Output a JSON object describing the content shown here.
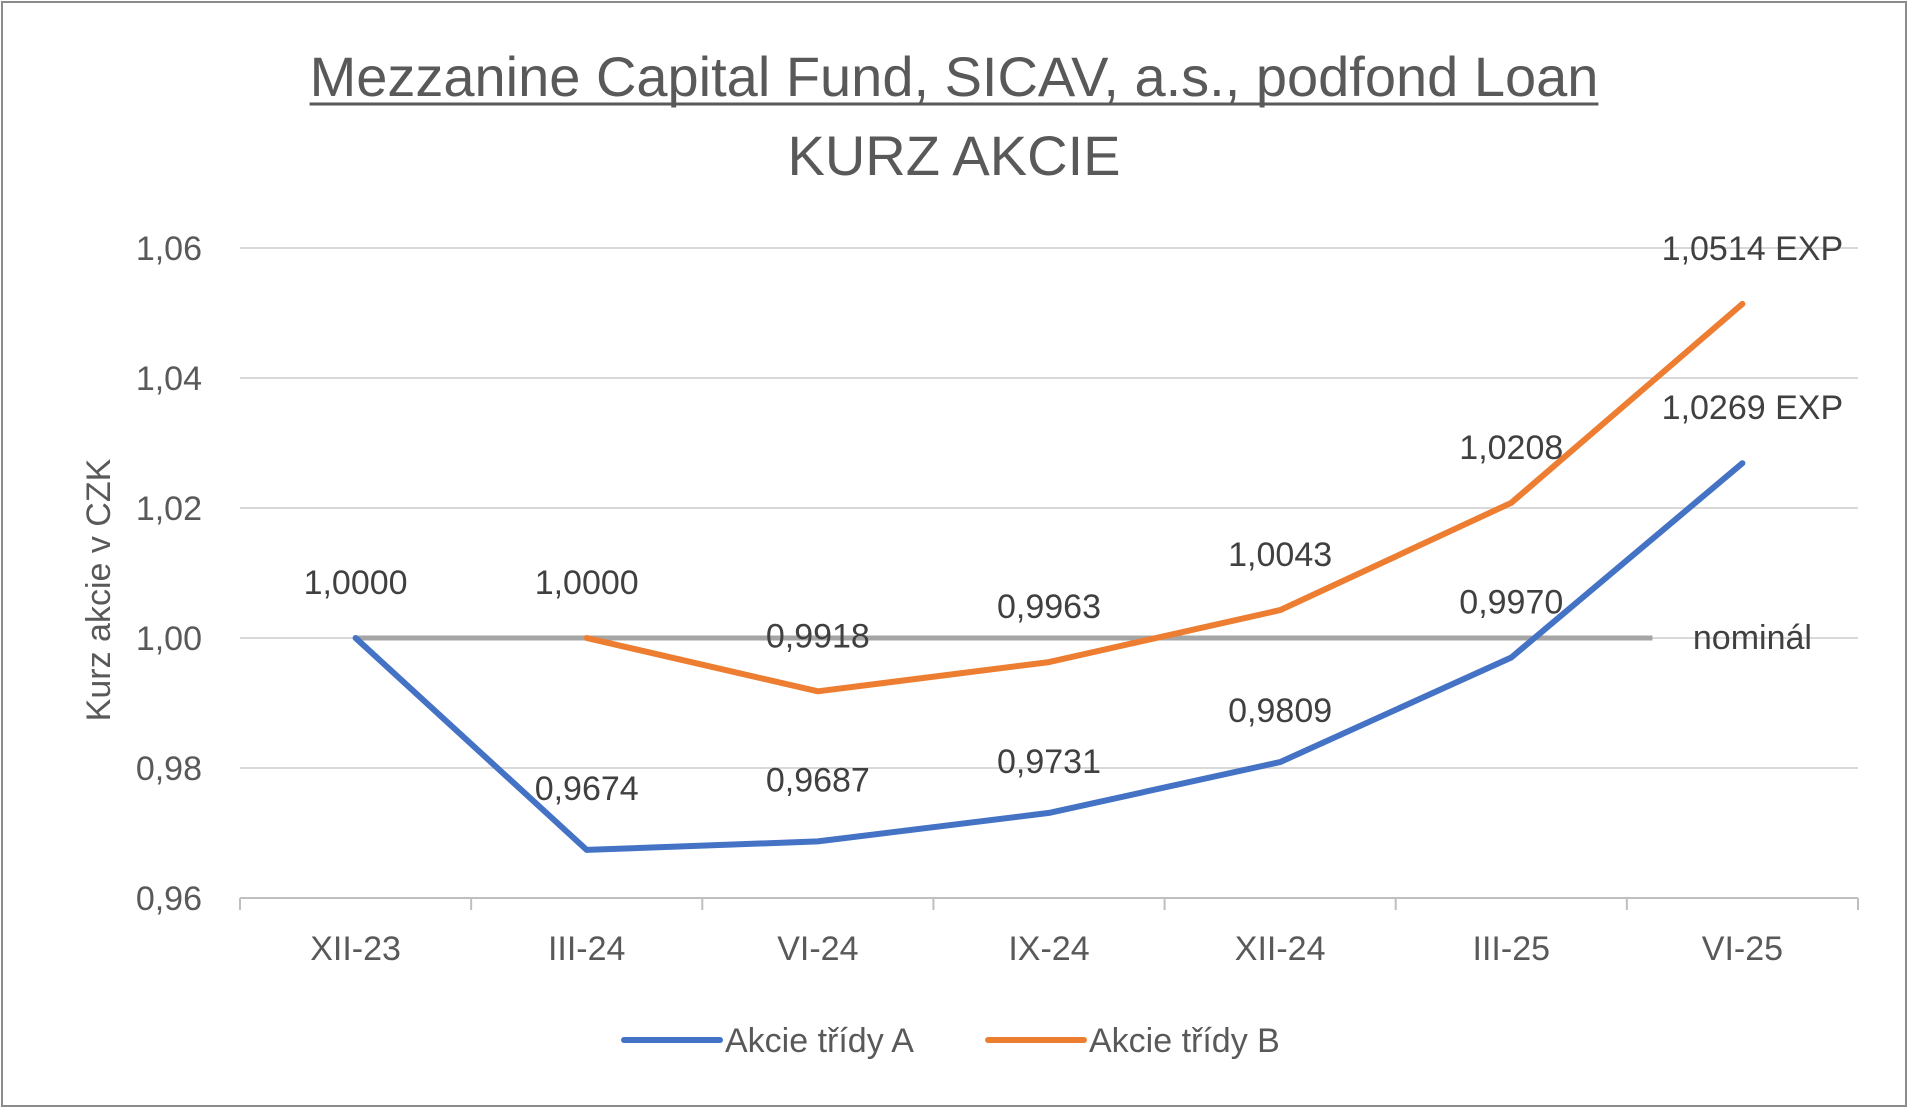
{
  "chart_data": {
    "type": "line",
    "title": "Mezzanine Capital Fund, SICAV, a.s., podfond Loan",
    "subtitle": "KURZ AKCIE",
    "xlabel": "",
    "ylabel": "Kurz akcie v CZK",
    "categories": [
      "XII-23",
      "III-24",
      "VI-24",
      "IX-24",
      "XII-24",
      "III-25",
      "VI-25"
    ],
    "ylim": [
      0.96,
      1.06
    ],
    "yticks": [
      0.96,
      0.98,
      1.0,
      1.02,
      1.04,
      1.06
    ],
    "ytick_labels": [
      "0,96",
      "0,98",
      "1,00",
      "1,02",
      "1,04",
      "1,06"
    ],
    "grid": true,
    "legend_position": "bottom",
    "series": [
      {
        "name": "Akcie třídy A",
        "color": "#4472c4",
        "values": [
          1.0,
          0.9674,
          0.9687,
          0.9731,
          0.9809,
          0.997,
          1.0269
        ],
        "labels": [
          "1,0000",
          "0,9674",
          "0,9687",
          "0,9731",
          "0,9809",
          "0,9970",
          "1,0269 EXP"
        ]
      },
      {
        "name": "Akcie třídy B",
        "color": "#ed7d31",
        "values": [
          null,
          1.0,
          0.9918,
          0.9963,
          1.0043,
          1.0208,
          1.0514
        ],
        "labels": [
          null,
          "1,0000",
          "0,9918",
          "0,9963",
          "1,0043",
          "1,0208",
          "1,0514 EXP"
        ]
      }
    ],
    "reference_line": {
      "label": "nominál",
      "value": 1.0,
      "color": "#a5a5a5"
    },
    "colors": {
      "grid": "#d9d9d9",
      "axis": "#bfbfbf",
      "text": "#595959"
    }
  }
}
